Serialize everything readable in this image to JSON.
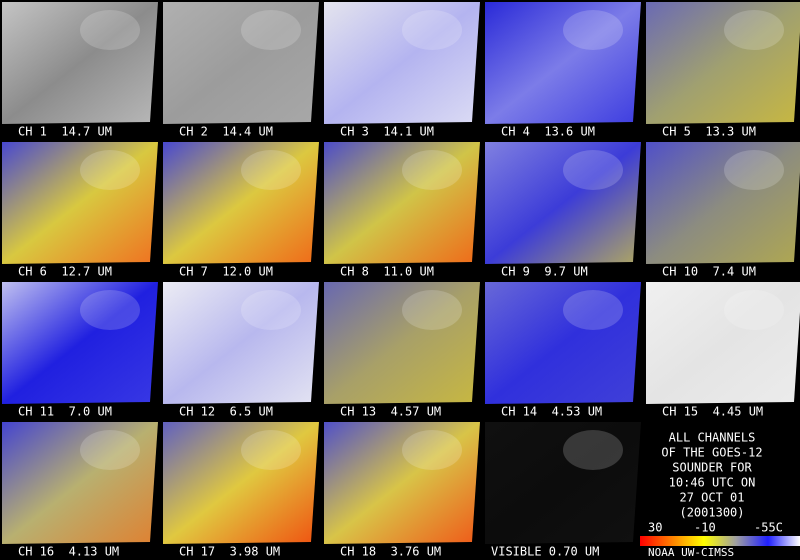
{
  "panels": [
    {
      "label": "CH 1  14.7 UM",
      "colors": [
        "#c4c4c4",
        "#8c8c8c",
        "#b8b8b8"
      ]
    },
    {
      "label": "CH 2  14.4 UM",
      "colors": [
        "#b0b0b0",
        "#9c9c9c",
        "#a8a8a8"
      ]
    },
    {
      "label": "CH 3  14.1 UM",
      "colors": [
        "#e4e4ee",
        "#b4b4f0",
        "#dcdcf4"
      ]
    },
    {
      "label": "CH 4  13.6 UM",
      "colors": [
        "#2a2ad8",
        "#7c7ce8",
        "#3c3ce0"
      ]
    },
    {
      "label": "CH 5  13.3 UM",
      "colors": [
        "#6a6ab4",
        "#a0a070",
        "#c8b840"
      ]
    },
    {
      "label": "CH 6  12.7 UM",
      "colors": [
        "#4848d0",
        "#d8c840",
        "#f07020"
      ]
    },
    {
      "label": "CH 7  12.0 UM",
      "colors": [
        "#4848d0",
        "#dcc840",
        "#f06818"
      ]
    },
    {
      "label": "CH 8  11.0 UM",
      "colors": [
        "#4c4cc8",
        "#d0c448",
        "#f06818"
      ]
    },
    {
      "label": "CH 9  9.7 UM",
      "colors": [
        "#8080e0",
        "#3c3cd8",
        "#b0a860"
      ]
    },
    {
      "label": "CH 10  7.4 UM",
      "colors": [
        "#5050c8",
        "#8c8c80",
        "#b0a850"
      ]
    },
    {
      "label": "CH 11  7.0 UM",
      "colors": [
        "#c0c0f0",
        "#2020e0",
        "#3838e4"
      ]
    },
    {
      "label": "CH 12  6.5 UM",
      "colors": [
        "#ececf4",
        "#b8b8ee",
        "#e4e4f2"
      ]
    },
    {
      "label": "CH 13  4.57 UM",
      "colors": [
        "#6868b0",
        "#a8a068",
        "#c8b840"
      ]
    },
    {
      "label": "CH 14  4.53 UM",
      "colors": [
        "#6868d8",
        "#3030dc",
        "#4040d8"
      ]
    },
    {
      "label": "CH 15  4.45 UM",
      "colors": [
        "#f0f0f0",
        "#e4e4e4",
        "#ececec"
      ]
    },
    {
      "label": "CH 16  4.13 UM",
      "colors": [
        "#4444d0",
        "#b8b070",
        "#e08030"
      ]
    },
    {
      "label": "CH 17  3.98 UM",
      "colors": [
        "#6060c0",
        "#e0c840",
        "#f05010"
      ]
    },
    {
      "label": "CH 18  3.76 UM",
      "colors": [
        "#5050c8",
        "#d8c448",
        "#f05818"
      ]
    },
    {
      "label": "VISIBLE 0.70 UM",
      "colors": [
        "#101010",
        "#0c0c0c",
        "#101010"
      ]
    }
  ],
  "info": [
    "ALL CHANNELS",
    "OF THE GOES-12",
    "SOUNDER FOR",
    "10:46 UTC ON",
    "27 OCT 01",
    "(2001300)"
  ],
  "colorbar": {
    "labels": [
      "30",
      "-10",
      "-55C"
    ],
    "colors": [
      "#ff0000",
      "#ff8000",
      "#ffff00",
      "#a0a0a0",
      "#2020ff",
      "#ffffff"
    ]
  },
  "credit": "NOAA UW-CIMSS"
}
